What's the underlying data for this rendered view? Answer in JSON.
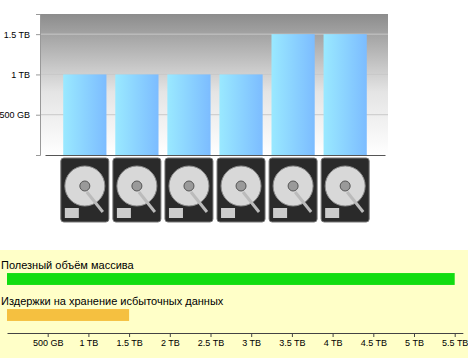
{
  "chart_data": [
    {
      "type": "bar",
      "categories": [
        null,
        null,
        null,
        null,
        null,
        null
      ],
      "values": [
        1,
        1,
        1,
        1,
        1.5,
        1.5
      ],
      "color": "#7cbcff",
      "ylim": [
        0,
        1.75
      ],
      "yticks": [
        {
          "value": 0.5,
          "label": "500 GB"
        },
        {
          "value": 1,
          "label": "1 TB"
        },
        {
          "value": 1.5,
          "label": "1.5 TB"
        }
      ],
      "grid": true
    },
    {
      "type": "bar",
      "orientation": "horizontal",
      "categories": [
        "Полезный объём массива",
        "Издержки на хранение исбыточных данных"
      ],
      "values": [
        5.5,
        1.5
      ],
      "colors": [
        "#11dd11",
        "#f5c040"
      ],
      "xlim": [
        0,
        5.6
      ],
      "xticks": [
        {
          "value": 0.5,
          "label": "500 GB"
        },
        {
          "value": 1,
          "label": "1 TB"
        },
        {
          "value": 1.5,
          "label": "1.5 TB"
        },
        {
          "value": 2,
          "label": "2 TB"
        },
        {
          "value": 2.5,
          "label": "2.5 TB"
        },
        {
          "value": 3,
          "label": "3 TB"
        },
        {
          "value": 3.5,
          "label": "3.5 TB"
        },
        {
          "value": 4,
          "label": "4 TB"
        },
        {
          "value": 4.5,
          "label": "4.5 TB"
        },
        {
          "value": 5,
          "label": "5 TB"
        },
        {
          "value": 5.5,
          "label": "5.5 TB"
        }
      ]
    }
  ]
}
